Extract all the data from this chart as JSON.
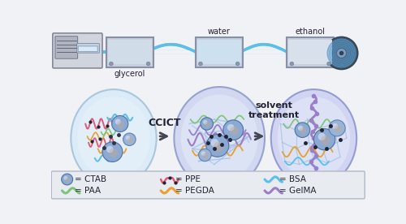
{
  "bg": "#f0f2f5",
  "white": "#ffffff",
  "labels": {
    "glycerol": "glycerol",
    "water": "water",
    "ethanol": "ethanol",
    "ccict": "CCICT",
    "solvent": "solvent\ntreatment"
  },
  "tube_color": "#5bbfea",
  "box_fc": "#c8ccd8",
  "box_ec": "#8890a8",
  "box_inner_fc": "#d8e4f0",
  "pump_fc": "#d0d4dc",
  "pump_ec": "#888899",
  "spool_outer": "#555566",
  "spool_inner": "#7a9fc0",
  "spool_fiber": "#5599cc",
  "blob1_fc": "#d8eaf8",
  "blob1_ec": "#a0c0d8",
  "blob2_fc": "#ccd4f0",
  "blob2_ec": "#8898c8",
  "blob3_fc": "#ccd0f2",
  "blob3_ec": "#8890cc",
  "sphere_fc": "#8aaad4",
  "sphere_ec": "#5070a0",
  "sphere_inner": "#c8a890",
  "dot_color": "#222233",
  "arrow_color": "#444455",
  "text_color": "#222233",
  "legend_bg": "#e8ecf0",
  "legend_ec": "#b0b8c8",
  "colors": {
    "paa": "#7dc47a",
    "pegda": "#e8a030",
    "ppe": "#e05a78",
    "bsa": "#5bbfea",
    "gelma": "#9b7ec8",
    "net": "#a0c0e8",
    "purple_net": "#b8a0e0"
  }
}
